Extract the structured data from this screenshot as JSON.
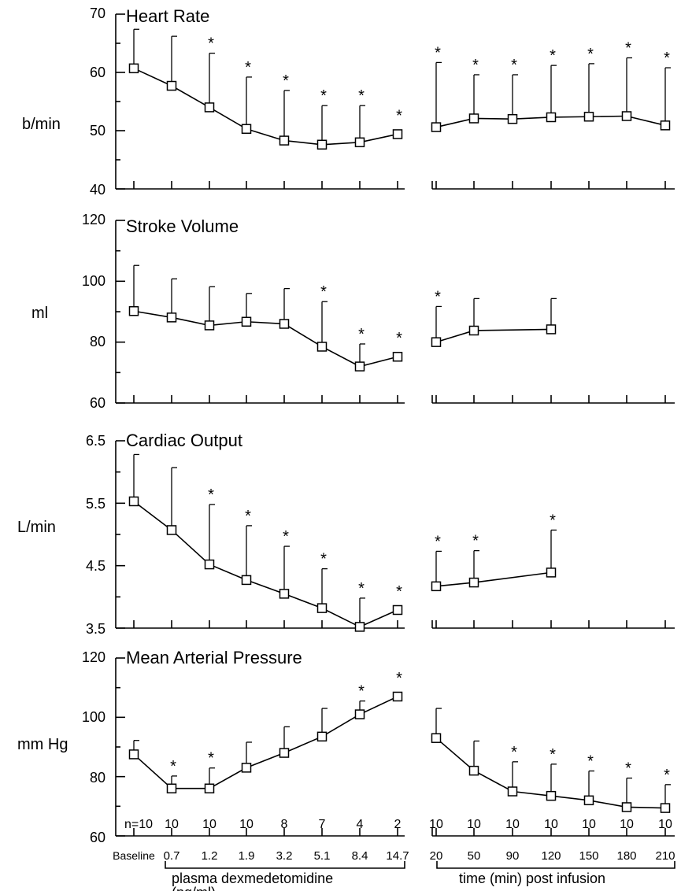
{
  "chart_data": [
    {
      "type": "line",
      "title": "Heart Rate",
      "ylabel": "b/min",
      "ylim": [
        40,
        70
      ],
      "yticks": [
        "40",
        "50",
        "60",
        "70"
      ],
      "segments": [
        {
          "x": [
            "Baseline",
            "0.7",
            "1.2",
            "1.9",
            "3.2",
            "5.1",
            "8.4",
            "14.7"
          ],
          "values": [
            60.7,
            57.7,
            54.0,
            50.3,
            48.3,
            47.6,
            48.0,
            49.4
          ],
          "error_upper": [
            67.4,
            66.2,
            63.3,
            59.2,
            56.9,
            54.3,
            54.3,
            null
          ],
          "significant": [
            false,
            false,
            true,
            true,
            true,
            true,
            true,
            true
          ]
        },
        {
          "x": [
            "20",
            "50",
            "90",
            "120",
            "150",
            "180",
            "210"
          ],
          "values": [
            50.6,
            52.1,
            52.0,
            52.3,
            52.4,
            52.5,
            50.9
          ],
          "error_upper": [
            61.7,
            59.6,
            59.6,
            61.2,
            61.5,
            62.5,
            60.8
          ],
          "significant": [
            true,
            true,
            true,
            true,
            true,
            true,
            true
          ]
        }
      ]
    },
    {
      "type": "line",
      "title": "Stroke Volume",
      "ylabel": "ml",
      "ylim": [
        60,
        120
      ],
      "yticks": [
        "60",
        "80",
        "100",
        "120"
      ],
      "segments": [
        {
          "x": [
            "Baseline",
            "0.7",
            "1.2",
            "1.9",
            "3.2",
            "5.1",
            "8.4",
            "14.7"
          ],
          "values": [
            90.2,
            88.1,
            85.5,
            86.7,
            86.0,
            78.5,
            72.0,
            75.2
          ],
          "error_upper": [
            105.2,
            100.8,
            98.2,
            96.0,
            97.6,
            93.3,
            79.4,
            null
          ],
          "significant": [
            false,
            false,
            false,
            false,
            false,
            true,
            true,
            true
          ]
        },
        {
          "x": [
            "20",
            "50",
            "90",
            "120",
            "150",
            "180",
            "210"
          ],
          "values": [
            80.0,
            83.8,
            null,
            84.2,
            null,
            null,
            null
          ],
          "error_upper": [
            91.7,
            94.3,
            null,
            94.3,
            null,
            null,
            null
          ],
          "significant": [
            true,
            false,
            false,
            false,
            false,
            false,
            false
          ]
        }
      ]
    },
    {
      "type": "line",
      "title": "Cardiac Output",
      "ylabel": "L/min",
      "ylim": [
        3.5,
        6.5
      ],
      "yticks": [
        "3.5",
        "4.5",
        "5.5",
        "6.5"
      ],
      "segments": [
        {
          "x": [
            "Baseline",
            "0.7",
            "1.2",
            "1.9",
            "3.2",
            "5.1",
            "8.4",
            "14.7"
          ],
          "values": [
            5.53,
            5.07,
            4.52,
            4.27,
            4.05,
            3.82,
            3.52,
            3.79
          ],
          "error_upper": [
            6.28,
            6.07,
            5.48,
            5.14,
            4.81,
            4.45,
            3.98,
            null
          ],
          "significant": [
            false,
            false,
            true,
            true,
            true,
            true,
            true,
            true
          ]
        },
        {
          "x": [
            "20",
            "50",
            "90",
            "120",
            "150",
            "180",
            "210"
          ],
          "values": [
            4.17,
            4.23,
            null,
            4.39,
            null,
            null,
            null
          ],
          "error_upper": [
            4.73,
            4.74,
            null,
            5.07,
            null,
            null,
            null
          ],
          "significant": [
            true,
            true,
            false,
            true,
            false,
            false,
            false
          ]
        }
      ]
    },
    {
      "type": "line",
      "title": "Mean Arterial Pressure",
      "ylabel": "mm Hg",
      "ylim": [
        60,
        120
      ],
      "yticks": [
        "60",
        "80",
        "100",
        "120"
      ],
      "segments": [
        {
          "x": [
            "Baseline",
            "0.7",
            "1.2",
            "1.9",
            "3.2",
            "5.1",
            "8.4",
            "14.7"
          ],
          "values": [
            87.5,
            76.0,
            76.0,
            83.0,
            88.0,
            93.5,
            101.0,
            107.0
          ],
          "error_upper": [
            92.2,
            80.2,
            82.9,
            91.6,
            96.8,
            103.0,
            105.5,
            null
          ],
          "significant": [
            false,
            true,
            true,
            false,
            false,
            false,
            true,
            true
          ]
        },
        {
          "x": [
            "20",
            "50",
            "90",
            "120",
            "150",
            "180",
            "210"
          ],
          "values": [
            93.0,
            82.0,
            75.0,
            73.5,
            72.0,
            69.7,
            69.4
          ],
          "error_upper": [
            103.0,
            92.0,
            85.0,
            84.2,
            81.9,
            79.5,
            77.3
          ],
          "significant": [
            false,
            false,
            true,
            true,
            true,
            true,
            true
          ]
        }
      ]
    }
  ],
  "n_labels": {
    "left": [
      "n=10",
      "10",
      "10",
      "10",
      "8",
      "7",
      "4",
      "2"
    ],
    "right": [
      "10",
      "10",
      "10",
      "10",
      "10",
      "10",
      "10"
    ]
  },
  "x_tick_labels": {
    "left": [
      "Baseline",
      "0.7",
      "1.2",
      "1.9",
      "3.2",
      "5.1",
      "8.4",
      "14.7"
    ],
    "right": [
      "20",
      "50",
      "90",
      "120",
      "150",
      "180",
      "210"
    ]
  },
  "group_labels": {
    "left_line1": "plasma dexmedetomidine",
    "left_line2": "(ng/ml)",
    "right": "time (min) post infusion"
  },
  "significance_marker": "*"
}
